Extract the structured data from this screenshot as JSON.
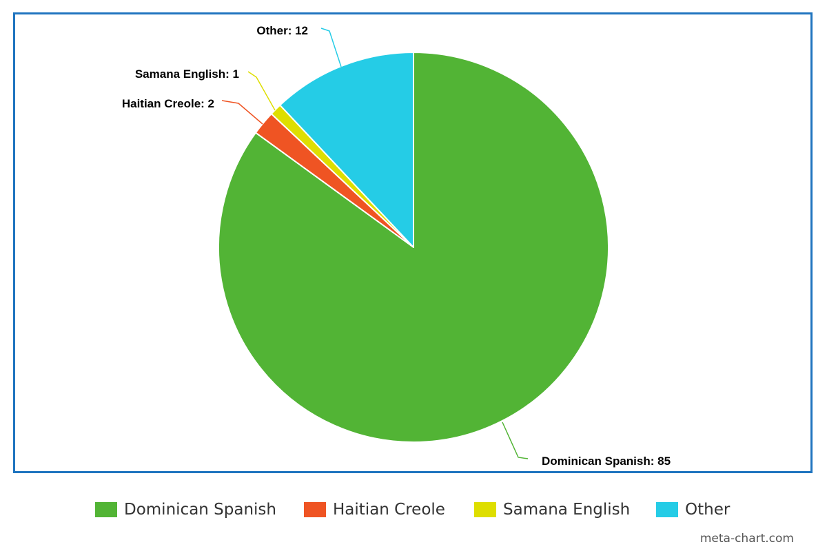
{
  "chart_data": {
    "type": "pie",
    "categories": [
      "Dominican Spanish",
      "Haitian Creole",
      "Samana English",
      "Other"
    ],
    "values": [
      85,
      2,
      1,
      12
    ],
    "colors": [
      "#52b435",
      "#ef5423",
      "#dede00",
      "#25cce6"
    ],
    "data_labels": [
      "Dominican Spanish: 85",
      "Haitian Creole: 2",
      "Samana English: 1",
      "Other: 12"
    ],
    "legend_placement": "bottom",
    "start_angle": "12 o'clock, clockwise"
  },
  "credit": "meta-chart.com"
}
